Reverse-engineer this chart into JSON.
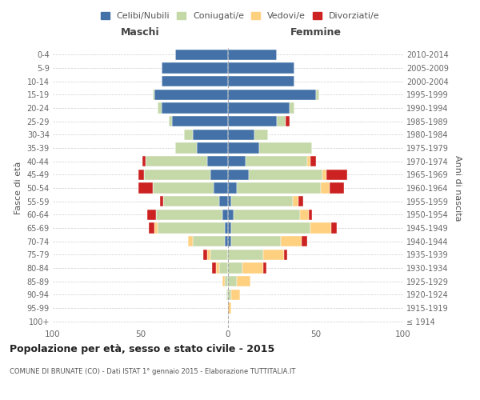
{
  "age_groups": [
    "100+",
    "95-99",
    "90-94",
    "85-89",
    "80-84",
    "75-79",
    "70-74",
    "65-69",
    "60-64",
    "55-59",
    "50-54",
    "45-49",
    "40-44",
    "35-39",
    "30-34",
    "25-29",
    "20-24",
    "15-19",
    "10-14",
    "5-9",
    "0-4"
  ],
  "birth_years": [
    "≤ 1914",
    "1915-1919",
    "1920-1924",
    "1925-1929",
    "1930-1934",
    "1935-1939",
    "1940-1944",
    "1945-1949",
    "1950-1954",
    "1955-1959",
    "1960-1964",
    "1965-1969",
    "1970-1974",
    "1975-1979",
    "1980-1984",
    "1985-1989",
    "1990-1994",
    "1995-1999",
    "2000-2004",
    "2005-2009",
    "2010-2014"
  ],
  "male": {
    "celibi": [
      0,
      0,
      0,
      0,
      0,
      0,
      2,
      2,
      3,
      5,
      8,
      10,
      12,
      18,
      20,
      32,
      38,
      42,
      38,
      38,
      30
    ],
    "coniugati": [
      0,
      0,
      1,
      2,
      5,
      10,
      18,
      38,
      38,
      32,
      35,
      38,
      35,
      12,
      5,
      2,
      2,
      1,
      0,
      0,
      0
    ],
    "vedovi": [
      0,
      0,
      0,
      1,
      2,
      2,
      3,
      2,
      0,
      0,
      0,
      0,
      0,
      0,
      0,
      0,
      0,
      0,
      0,
      0,
      0
    ],
    "divorziati": [
      0,
      0,
      0,
      0,
      2,
      2,
      0,
      3,
      5,
      2,
      8,
      3,
      2,
      0,
      0,
      0,
      0,
      0,
      0,
      0,
      0
    ]
  },
  "female": {
    "nubili": [
      0,
      0,
      0,
      0,
      0,
      0,
      2,
      2,
      3,
      2,
      5,
      12,
      10,
      18,
      15,
      28,
      35,
      50,
      38,
      38,
      28
    ],
    "coniugate": [
      0,
      0,
      2,
      5,
      8,
      20,
      28,
      45,
      38,
      35,
      48,
      42,
      35,
      30,
      8,
      5,
      3,
      2,
      0,
      0,
      0
    ],
    "vedove": [
      0,
      2,
      5,
      8,
      12,
      12,
      12,
      12,
      5,
      3,
      5,
      2,
      2,
      0,
      0,
      0,
      0,
      0,
      0,
      0,
      0
    ],
    "divorziate": [
      0,
      0,
      0,
      0,
      2,
      2,
      3,
      3,
      2,
      3,
      8,
      12,
      3,
      0,
      0,
      2,
      0,
      0,
      0,
      0,
      0
    ]
  },
  "colors": {
    "celibi": "#4472a8",
    "coniugati": "#c5d8a8",
    "vedovi": "#ffd080",
    "divorziati": "#cc2222"
  },
  "title": "Popolazione per età, sesso e stato civile - 2015",
  "subtitle": "COMUNE DI BRUNATE (CO) - Dati ISTAT 1° gennaio 2015 - Elaborazione TUTTITALIA.IT",
  "xlabel_left": "Maschi",
  "xlabel_right": "Femmine",
  "ylabel_left": "Fasce di età",
  "ylabel_right": "Anni di nascita",
  "xlim": 100,
  "legend_labels": [
    "Celibi/Nubili",
    "Coniugati/e",
    "Vedovi/e",
    "Divorziati/e"
  ],
  "background_color": "#ffffff"
}
